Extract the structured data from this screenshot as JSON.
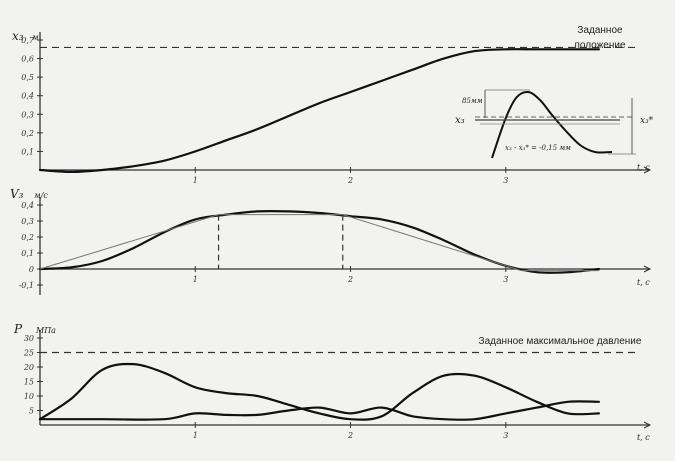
{
  "chart_data": [
    {
      "type": "line",
      "ylabel": "x₃",
      "yunit": "м",
      "xlabel": "t, c",
      "ylim": [
        0,
        0.7
      ],
      "xlim": [
        0,
        3.8
      ],
      "yticks": [
        "0,1",
        "0,2",
        "0,3",
        "0,4",
        "0,5",
        "0,6",
        "0,7"
      ],
      "xticks": [
        "1",
        "2",
        "3"
      ],
      "xunit": "t, c",
      "annotation": "Заданное положение",
      "target_y": 0.66,
      "series": [
        {
          "x": [
            0,
            0.2,
            0.4,
            0.6,
            0.8,
            1.0,
            1.2,
            1.4,
            1.6,
            1.8,
            2.0,
            2.2,
            2.4,
            2.6,
            2.8,
            3.0,
            3.2,
            3.4,
            3.6
          ],
          "values": [
            0.0,
            -0.01,
            0.0,
            0.02,
            0.05,
            0.1,
            0.16,
            0.22,
            0.29,
            0.36,
            0.42,
            0.48,
            0.54,
            0.6,
            0.64,
            0.65,
            0.65,
            0.65,
            0.65
          ]
        }
      ],
      "inset": {
        "label_left": "x₃",
        "label_right": "x₃*",
        "label_amplitude": "85мм",
        "label_error": "x₃ - x₃* = -0,15 мм"
      }
    },
    {
      "type": "line",
      "ylabel": "V₃",
      "yunit": "м/с",
      "xlabel": "t, c",
      "ylim": [
        -0.1,
        0.4
      ],
      "xlim": [
        0,
        3.8
      ],
      "yticks": [
        "-0,1",
        "0",
        "0,1",
        "0,2",
        "0,3",
        "0,4"
      ],
      "xticks": [
        "1",
        "2",
        "3"
      ],
      "xunit": "t, c",
      "series": [
        {
          "x": [
            0,
            0.2,
            0.4,
            0.6,
            0.8,
            1.0,
            1.2,
            1.4,
            1.6,
            1.8,
            2.0,
            2.2,
            2.4,
            2.6,
            2.8,
            3.0,
            3.2,
            3.4,
            3.6
          ],
          "values": [
            0.0,
            0.01,
            0.05,
            0.13,
            0.23,
            0.31,
            0.34,
            0.36,
            0.36,
            0.35,
            0.33,
            0.31,
            0.26,
            0.18,
            0.09,
            0.02,
            -0.02,
            -0.02,
            0.0
          ]
        },
        {
          "x": [
            0,
            1.15,
            1.95,
            3.1,
            3.6
          ],
          "values": [
            0.0,
            0.34,
            0.34,
            -0.01,
            -0.01
          ]
        }
      ],
      "markers_x": [
        1.15,
        1.95
      ]
    },
    {
      "type": "line",
      "ylabel": "P",
      "yunit": "МПа",
      "xlabel": "t, c",
      "ylim": [
        0,
        30
      ],
      "xlim": [
        0,
        3.8
      ],
      "yticks": [
        "5",
        "10",
        "15",
        "20",
        "25",
        "30"
      ],
      "xticks": [
        "1",
        "2",
        "3"
      ],
      "xunit": "t, c",
      "annotation": "Заданное максимальное давление",
      "target_y": 25,
      "series": [
        {
          "x": [
            0,
            0.2,
            0.4,
            0.6,
            0.8,
            1.0,
            1.2,
            1.4,
            1.6,
            1.8,
            2.0,
            2.2,
            2.4,
            2.6,
            2.8,
            3.0,
            3.2,
            3.4,
            3.6
          ],
          "values": [
            2,
            9,
            19,
            21,
            18,
            13,
            11,
            10,
            7,
            4,
            2,
            3,
            11,
            17,
            17,
            13,
            8,
            4,
            4
          ]
        },
        {
          "x": [
            0,
            0.4,
            0.8,
            1.0,
            1.2,
            1.4,
            1.6,
            1.8,
            2.0,
            2.2,
            2.4,
            2.6,
            2.8,
            3.0,
            3.2,
            3.4,
            3.6
          ],
          "values": [
            2,
            2,
            2,
            4,
            3.5,
            3.5,
            5,
            6,
            4,
            6,
            3,
            2,
            2,
            4,
            6,
            8,
            8
          ]
        }
      ]
    }
  ]
}
